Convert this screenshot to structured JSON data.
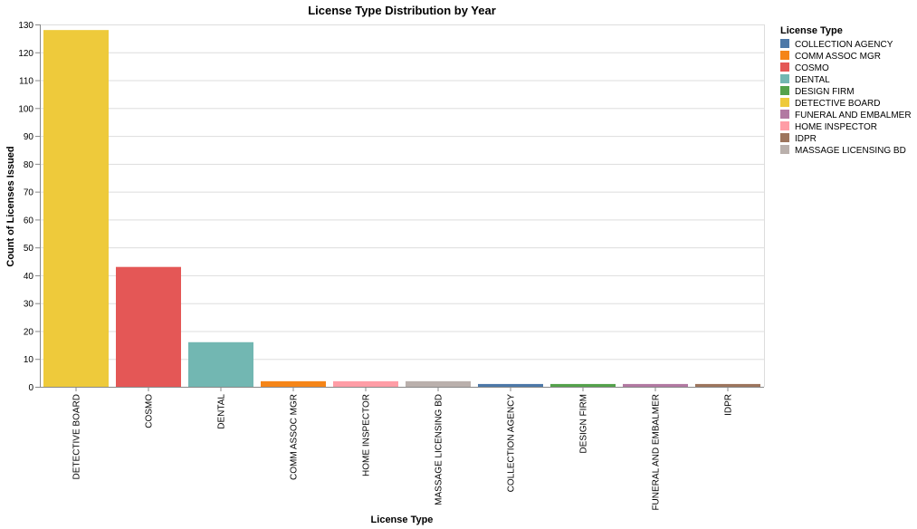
{
  "chart_data": {
    "type": "bar",
    "title": "License Type Distribution by Year",
    "xlabel": "License Type",
    "ylabel": "Count of Licenses Issued",
    "ylim": [
      0,
      130
    ],
    "y_ticks": [
      0,
      10,
      20,
      30,
      40,
      50,
      60,
      70,
      80,
      90,
      100,
      110,
      120,
      130
    ],
    "grid": true,
    "categories": [
      "DETECTIVE BOARD",
      "COSMO",
      "DENTAL",
      "COMM ASSOC MGR",
      "HOME INSPECTOR",
      "MASSAGE LICENSING BD",
      "COLLECTION AGENCY",
      "DESIGN FIRM",
      "FUNERAL AND EMBALMER",
      "IDPR"
    ],
    "values": [
      128,
      43,
      16,
      2,
      2,
      2,
      1,
      1,
      1,
      1
    ],
    "bar_colors": [
      "#eeca3b",
      "#e45756",
      "#72b7b2",
      "#f58518",
      "#ff9da6",
      "#bab0ac",
      "#4c78a8",
      "#54a24b",
      "#b279a2",
      "#9d755d"
    ],
    "legend": {
      "title": "License Type",
      "position": "top-right",
      "entries": [
        {
          "label": "COLLECTION AGENCY",
          "color": "#4c78a8"
        },
        {
          "label": "COMM ASSOC MGR",
          "color": "#f58518"
        },
        {
          "label": "COSMO",
          "color": "#e45756"
        },
        {
          "label": "DENTAL",
          "color": "#72b7b2"
        },
        {
          "label": "DESIGN FIRM",
          "color": "#54a24b"
        },
        {
          "label": "DETECTIVE BOARD",
          "color": "#eeca3b"
        },
        {
          "label": "FUNERAL AND EMBALMER",
          "color": "#b279a2"
        },
        {
          "label": "HOME INSPECTOR",
          "color": "#ff9da6"
        },
        {
          "label": "IDPR",
          "color": "#9d755d"
        },
        {
          "label": "MASSAGE LICENSING BD",
          "color": "#bab0ac"
        }
      ]
    }
  }
}
